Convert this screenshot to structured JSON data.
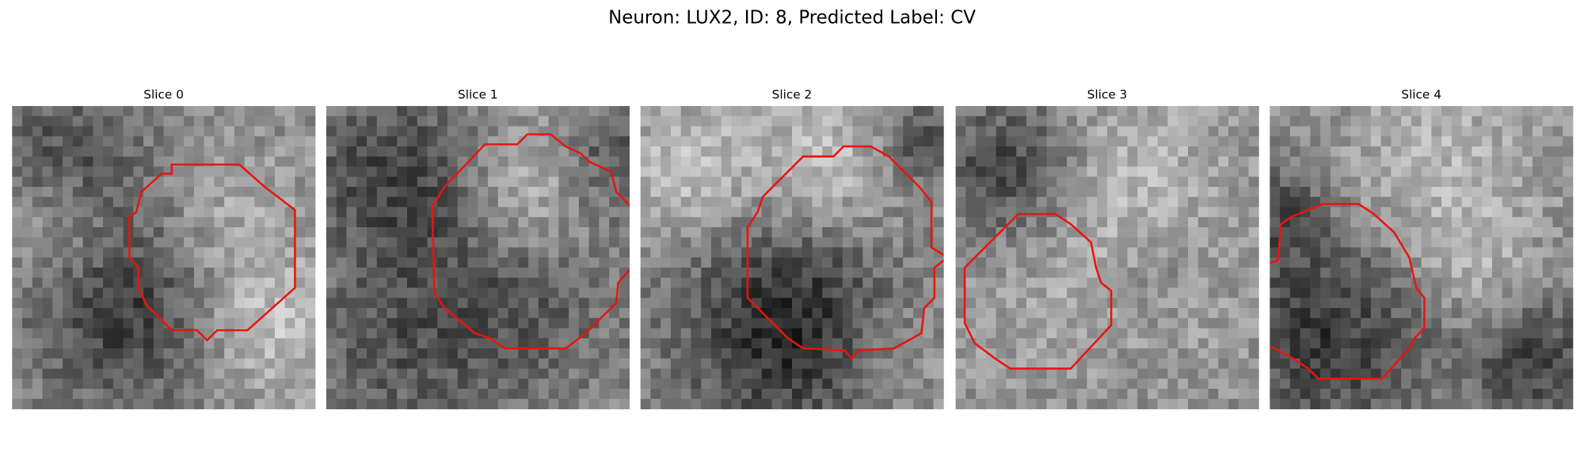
{
  "title": "Neuron: LUX2, ID: 8, Predicted Label: CV",
  "panels": [
    {
      "title": "Slice 0"
    },
    {
      "title": "Slice 1"
    },
    {
      "title": "Slice 2"
    },
    {
      "title": "Slice 3"
    },
    {
      "title": "Slice 4"
    }
  ]
}
